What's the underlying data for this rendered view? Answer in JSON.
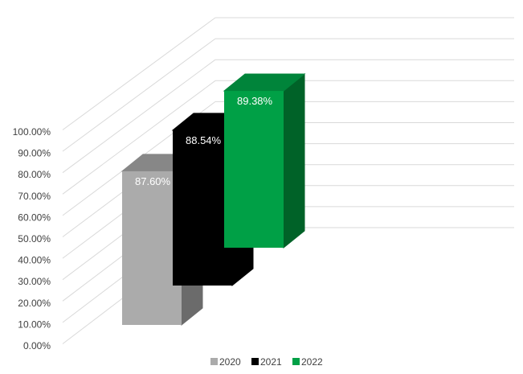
{
  "chart_data": {
    "type": "bar",
    "subtype": "3d-column-series-depth",
    "title": "",
    "xlabel": "",
    "ylabel": "",
    "ylim": [
      0,
      100
    ],
    "ytick_step": 10,
    "y_tick_labels": [
      "0.00%",
      "10.00%",
      "20.00%",
      "30.00%",
      "40.00%",
      "50.00%",
      "60.00%",
      "70.00%",
      "80.00%",
      "90.00%",
      "100.00%"
    ],
    "grid": true,
    "legend_position": "bottom",
    "series": [
      {
        "name": "2020",
        "values": [
          87.6
        ],
        "label": "87.60%",
        "color": "#ababab",
        "side_color": "#6b6b6b",
        "top_color": "#878787"
      },
      {
        "name": "2021",
        "values": [
          88.54
        ],
        "label": "88.54%",
        "color": "#000000",
        "side_color": "#000000",
        "top_color": "#000000"
      },
      {
        "name": "2022",
        "values": [
          89.38
        ],
        "label": "89.38%",
        "color": "#00a046",
        "side_color": "#006228",
        "top_color": "#00843a"
      }
    ]
  }
}
